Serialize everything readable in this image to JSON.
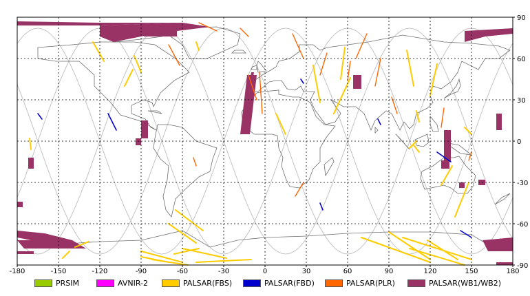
{
  "map": {
    "lon_range": [
      -180,
      180
    ],
    "lat_range": [
      -90,
      90
    ],
    "x_ticks": [
      "-180",
      "-150",
      "-120",
      "-90",
      "-60",
      "-30",
      "0",
      "30",
      "60",
      "90",
      "120",
      "150",
      "180"
    ],
    "y_ticks": [
      "90",
      "60",
      "30",
      "0",
      "-30",
      "-60",
      "-90"
    ],
    "grid": "dashed"
  },
  "legend": [
    {
      "label": "PRSIM",
      "color": "#99cc00"
    },
    {
      "label": "AVNIR-2",
      "color": "#ff00ff"
    },
    {
      "label": "PALSAR(FBS)",
      "color": "#ffcc00"
    },
    {
      "label": "PALSAR(FBD)",
      "color": "#0000cc"
    },
    {
      "label": "PALSAR(PLR)",
      "color": "#ff6600"
    },
    {
      "label": "PALSAR(WB1/WB2)",
      "color": "#993366"
    }
  ]
}
